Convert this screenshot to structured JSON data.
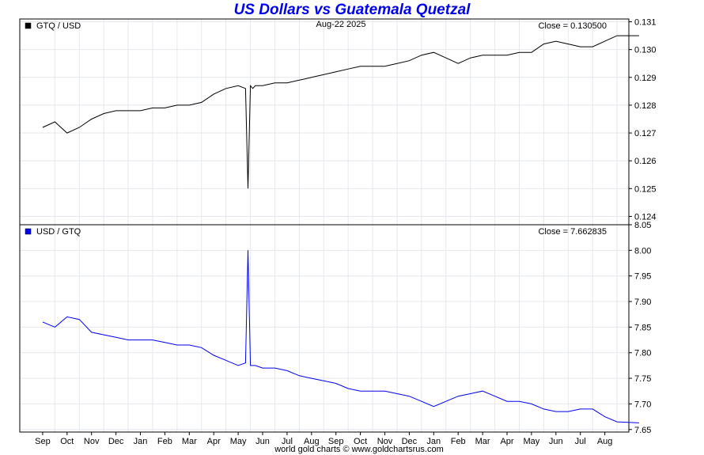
{
  "title": "US Dollars vs Guatemala Quetzal",
  "title_color": "#0000ee",
  "date": "Aug-22  2025",
  "footer": "world gold charts © www.goldchartsrus.com",
  "chart_data": [
    {
      "type": "line",
      "legend": "GTQ / USD",
      "close_label": "Close = 0.130500",
      "series_color": "#000000",
      "ylim": [
        0.1237,
        0.1311
      ],
      "yticks": [
        "0.131",
        "0.130",
        "0.129",
        "0.128",
        "0.127",
        "0.126",
        "0.125",
        "0.124"
      ],
      "x_labels": [
        "Sep",
        "Oct",
        "Nov",
        "Dec",
        "Jan",
        "Feb",
        "Mar",
        "Apr",
        "May",
        "Jun",
        "Jul",
        "Aug",
        "Sep",
        "Oct",
        "Nov",
        "Dec",
        "Jan",
        "Feb",
        "Mar",
        "Apr",
        "May",
        "Jun",
        "Jul",
        "Aug"
      ],
      "x": [
        0,
        0.5,
        1,
        1.5,
        2,
        2.5,
        3,
        3.5,
        4,
        4.5,
        5,
        5.5,
        6,
        6.5,
        7,
        7.5,
        8,
        8.3,
        8.4,
        8.5,
        8.6,
        8.7,
        9,
        9.5,
        10,
        10.5,
        11,
        11.5,
        12,
        12.5,
        13,
        13.5,
        14,
        14.5,
        15,
        15.5,
        16,
        16.5,
        17,
        17.5,
        18,
        18.5,
        19,
        19.5,
        20,
        20.5,
        21,
        21.5,
        22,
        22.5,
        23,
        23.5,
        24.4
      ],
      "values": [
        0.1272,
        0.1274,
        0.127,
        0.1272,
        0.1275,
        0.1277,
        0.1278,
        0.1278,
        0.1278,
        0.1279,
        0.1279,
        0.128,
        0.128,
        0.1281,
        0.1284,
        0.1286,
        0.1287,
        0.1286,
        0.125,
        0.1287,
        0.1286,
        0.1287,
        0.1287,
        0.1288,
        0.1288,
        0.1289,
        0.129,
        0.1291,
        0.1292,
        0.1293,
        0.1294,
        0.1294,
        0.1294,
        0.1295,
        0.1296,
        0.1298,
        0.1299,
        0.1297,
        0.1295,
        0.1297,
        0.1298,
        0.1298,
        0.1298,
        0.1299,
        0.1299,
        0.1302,
        0.1303,
        0.1302,
        0.1301,
        0.1301,
        0.1303,
        0.1305,
        0.1305
      ]
    },
    {
      "type": "line",
      "legend": "USD / GTQ",
      "close_label": "Close = 7.662835",
      "series_color": "#0000ee",
      "ylim": [
        7.645,
        8.05
      ],
      "yticks": [
        "8.05",
        "8.00",
        "7.95",
        "7.90",
        "7.85",
        "7.80",
        "7.75",
        "7.70",
        "7.65"
      ],
      "x_labels": [
        "Sep",
        "Oct",
        "Nov",
        "Dec",
        "Jan",
        "Feb",
        "Mar",
        "Apr",
        "May",
        "Jun",
        "Jul",
        "Aug",
        "Sep",
        "Oct",
        "Nov",
        "Dec",
        "Jan",
        "Feb",
        "Mar",
        "Apr",
        "May",
        "Jun",
        "Jul",
        "Aug"
      ],
      "x": [
        0,
        0.5,
        1,
        1.5,
        2,
        2.5,
        3,
        3.5,
        4,
        4.5,
        5,
        5.5,
        6,
        6.5,
        7,
        7.5,
        8,
        8.3,
        8.4,
        8.5,
        8.6,
        8.7,
        9,
        9.5,
        10,
        10.5,
        11,
        11.5,
        12,
        12.5,
        13,
        13.5,
        14,
        14.5,
        15,
        15.5,
        16,
        16.5,
        17,
        17.5,
        18,
        18.5,
        19,
        19.5,
        20,
        20.5,
        21,
        21.5,
        22,
        22.5,
        23,
        23.5,
        24.4
      ],
      "values": [
        7.86,
        7.85,
        7.87,
        7.865,
        7.84,
        7.835,
        7.83,
        7.825,
        7.825,
        7.825,
        7.82,
        7.815,
        7.815,
        7.81,
        7.795,
        7.785,
        7.775,
        7.78,
        8.0,
        7.775,
        7.775,
        7.775,
        7.77,
        7.77,
        7.765,
        7.755,
        7.75,
        7.745,
        7.74,
        7.73,
        7.725,
        7.725,
        7.725,
        7.72,
        7.715,
        7.705,
        7.695,
        7.705,
        7.715,
        7.72,
        7.725,
        7.715,
        7.705,
        7.705,
        7.7,
        7.69,
        7.685,
        7.685,
        7.69,
        7.69,
        7.675,
        7.665,
        7.663
      ]
    }
  ]
}
